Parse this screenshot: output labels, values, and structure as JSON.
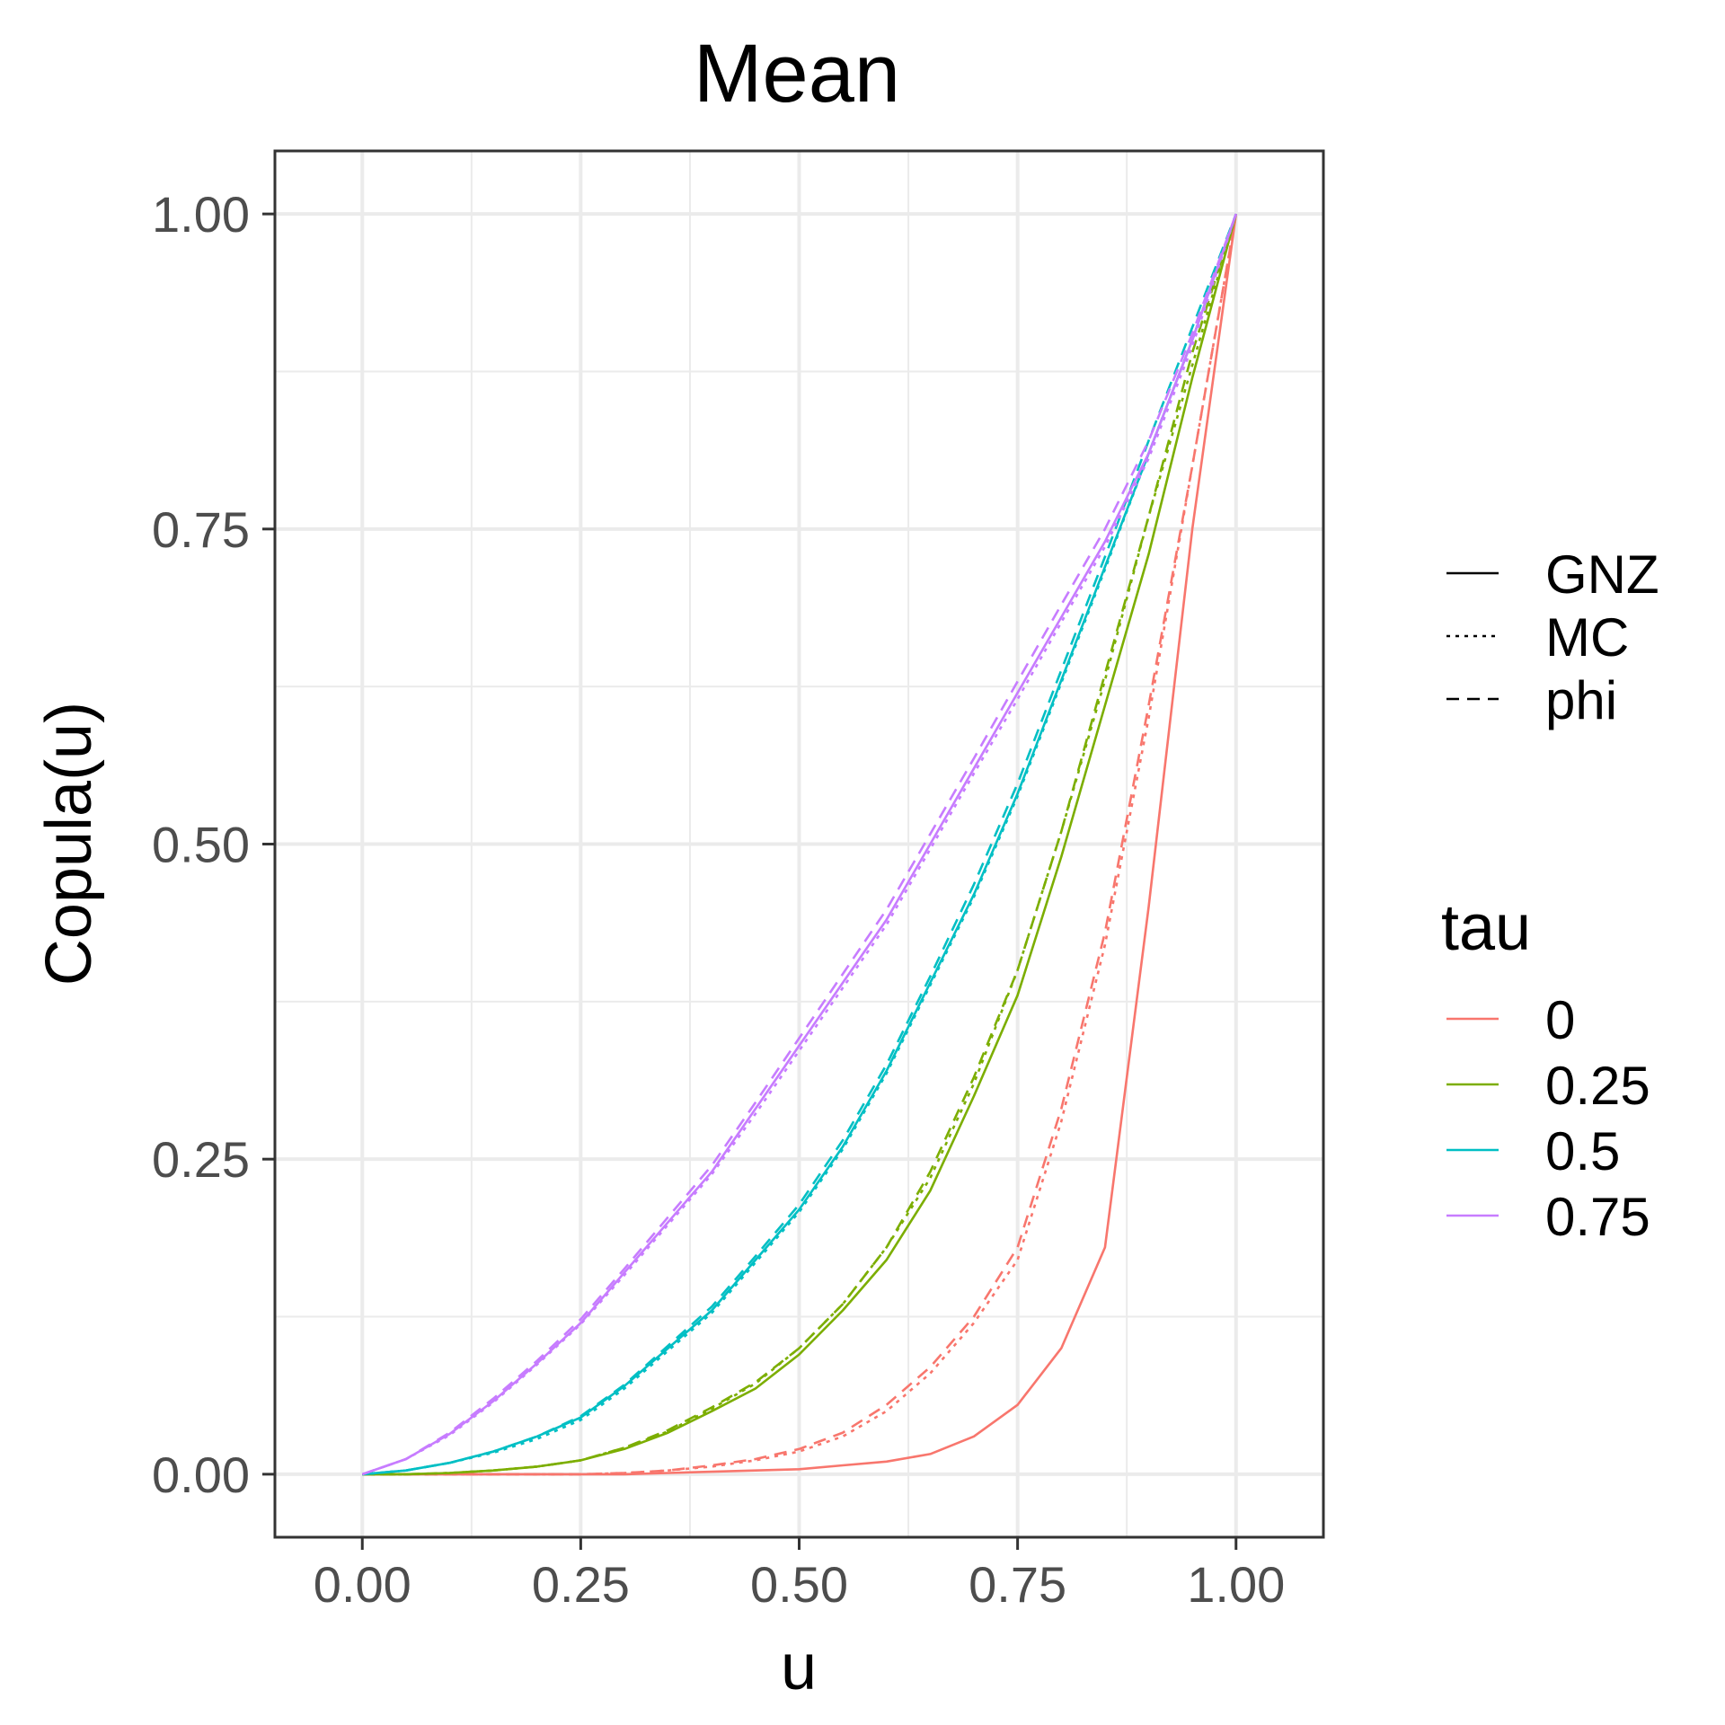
{
  "chart_data": {
    "type": "line",
    "title": "Mean",
    "xlabel": "u",
    "ylabel": "Copula(u)",
    "xlim": [
      -0.1,
      1.1
    ],
    "ylim": [
      -0.05,
      1.05
    ],
    "x_ticks": [
      "0.00",
      "0.25",
      "0.50",
      "0.75",
      "1.00"
    ],
    "y_ticks": [
      "0.00",
      "0.25",
      "0.50",
      "0.75",
      "1.00"
    ],
    "grid": true,
    "legend_position": "right",
    "linetype_legend": {
      "title": "",
      "items": [
        {
          "label": "GNZ",
          "dash": "solid"
        },
        {
          "label": "MC",
          "dash": "dotted"
        },
        {
          "label": "phi",
          "dash": "dashed"
        }
      ]
    },
    "color_legend": {
      "title": "tau",
      "items": [
        {
          "label": "0",
          "color": "#F8766D"
        },
        {
          "label": "0.25",
          "color": "#7CAE00"
        },
        {
          "label": "0.5",
          "color": "#00BFC4"
        },
        {
          "label": "0.75",
          "color": "#C77CFF"
        }
      ]
    },
    "x": [
      0,
      0.05,
      0.1,
      0.15,
      0.2,
      0.25,
      0.3,
      0.35,
      0.4,
      0.45,
      0.5,
      0.55,
      0.6,
      0.65,
      0.7,
      0.75,
      0.8,
      0.85,
      0.9,
      0.95,
      1.0
    ],
    "series": [
      {
        "tau": "0",
        "method": "GNZ",
        "color": "#F8766D",
        "dash": "solid",
        "values": [
          0,
          0,
          0,
          0,
          0,
          0,
          0,
          0.001,
          0.002,
          0.003,
          0.004,
          0.007,
          0.01,
          0.016,
          0.03,
          0.055,
          0.1,
          0.18,
          0.45,
          0.75,
          1.0
        ]
      },
      {
        "tau": "0",
        "method": "MC",
        "color": "#F8766D",
        "dash": "dotted",
        "values": [
          0,
          0,
          0,
          0,
          0,
          0,
          0.001,
          0.003,
          0.006,
          0.011,
          0.018,
          0.03,
          0.05,
          0.08,
          0.12,
          0.17,
          0.28,
          0.42,
          0.6,
          0.8,
          1.0
        ]
      },
      {
        "tau": "0",
        "method": "phi",
        "color": "#F8766D",
        "dash": "dashed",
        "values": [
          0,
          0,
          0,
          0,
          0,
          0,
          0.001,
          0.003,
          0.007,
          0.012,
          0.02,
          0.033,
          0.055,
          0.085,
          0.125,
          0.18,
          0.29,
          0.43,
          0.61,
          0.8,
          1.0
        ]
      },
      {
        "tau": "0.25",
        "method": "GNZ",
        "color": "#7CAE00",
        "dash": "solid",
        "values": [
          0,
          0,
          0.001,
          0.003,
          0.006,
          0.011,
          0.02,
          0.033,
          0.05,
          0.068,
          0.095,
          0.13,
          0.17,
          0.225,
          0.3,
          0.38,
          0.49,
          0.61,
          0.73,
          0.87,
          1.0
        ]
      },
      {
        "tau": "0.25",
        "method": "MC",
        "color": "#7CAE00",
        "dash": "dotted",
        "values": [
          0,
          0,
          0.001,
          0.003,
          0.006,
          0.011,
          0.021,
          0.034,
          0.052,
          0.072,
          0.1,
          0.135,
          0.18,
          0.235,
          0.31,
          0.4,
          0.51,
          0.63,
          0.76,
          0.88,
          1.0
        ]
      },
      {
        "tau": "0.25",
        "method": "phi",
        "color": "#7CAE00",
        "dash": "dashed",
        "values": [
          0,
          0,
          0.001,
          0.003,
          0.006,
          0.011,
          0.021,
          0.035,
          0.053,
          0.073,
          0.1,
          0.135,
          0.18,
          0.24,
          0.315,
          0.4,
          0.51,
          0.635,
          0.76,
          0.89,
          1.0
        ]
      },
      {
        "tau": "0.5",
        "method": "GNZ",
        "color": "#00BFC4",
        "dash": "solid",
        "values": [
          0,
          0.003,
          0.009,
          0.018,
          0.03,
          0.045,
          0.07,
          0.1,
          0.13,
          0.17,
          0.21,
          0.26,
          0.32,
          0.39,
          0.46,
          0.54,
          0.63,
          0.72,
          0.81,
          0.9,
          1.0
        ]
      },
      {
        "tau": "0.5",
        "method": "MC",
        "color": "#00BFC4",
        "dash": "dotted",
        "values": [
          0,
          0.003,
          0.009,
          0.017,
          0.028,
          0.043,
          0.068,
          0.098,
          0.128,
          0.168,
          0.208,
          0.258,
          0.318,
          0.388,
          0.458,
          0.538,
          0.628,
          0.718,
          0.81,
          0.9,
          1.0
        ]
      },
      {
        "tau": "0.5",
        "method": "phi",
        "color": "#00BFC4",
        "dash": "dashed",
        "values": [
          0,
          0.003,
          0.009,
          0.018,
          0.03,
          0.046,
          0.071,
          0.102,
          0.133,
          0.173,
          0.214,
          0.265,
          0.325,
          0.395,
          0.468,
          0.548,
          0.638,
          0.728,
          0.82,
          0.91,
          1.0
        ]
      },
      {
        "tau": "0.75",
        "method": "GNZ",
        "color": "#C77CFF",
        "dash": "solid",
        "values": [
          0,
          0.012,
          0.032,
          0.058,
          0.088,
          0.12,
          0.16,
          0.2,
          0.24,
          0.29,
          0.34,
          0.39,
          0.44,
          0.5,
          0.56,
          0.62,
          0.68,
          0.74,
          0.81,
          0.9,
          1.0
        ]
      },
      {
        "tau": "0.75",
        "method": "MC",
        "color": "#C77CFF",
        "dash": "dotted",
        "values": [
          0,
          0.012,
          0.031,
          0.057,
          0.087,
          0.119,
          0.158,
          0.198,
          0.238,
          0.286,
          0.336,
          0.386,
          0.436,
          0.496,
          0.556,
          0.615,
          0.676,
          0.736,
          0.806,
          0.895,
          1.0
        ]
      },
      {
        "tau": "0.75",
        "method": "phi",
        "color": "#C77CFF",
        "dash": "dashed",
        "values": [
          0,
          0.012,
          0.033,
          0.06,
          0.09,
          0.123,
          0.163,
          0.204,
          0.245,
          0.295,
          0.346,
          0.397,
          0.448,
          0.508,
          0.568,
          0.629,
          0.69,
          0.75,
          0.82,
          0.905,
          1.0
        ]
      }
    ]
  }
}
